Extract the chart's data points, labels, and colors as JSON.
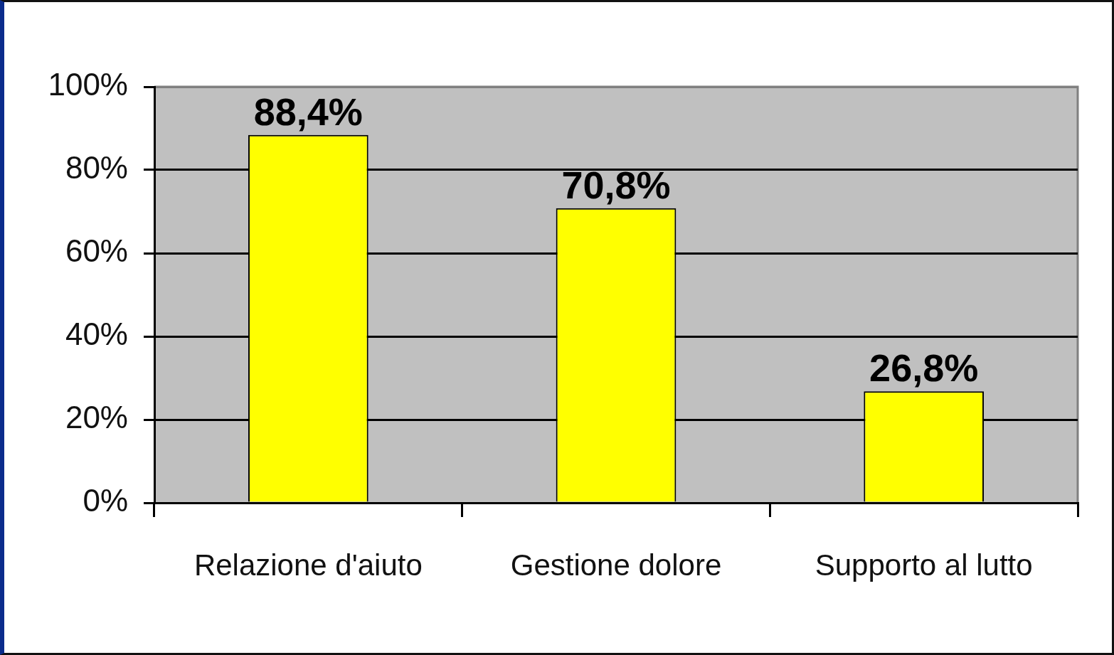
{
  "chart_data": {
    "type": "bar",
    "categories": [
      "Relazione d'aiuto",
      "Gestione dolore",
      "Supporto al lutto"
    ],
    "values": [
      88.4,
      70.8,
      26.8
    ],
    "color": "#ffff00",
    "value_labels": [
      "88,4%",
      "70,8%",
      "26,8%"
    ],
    "ylim": [
      0,
      100
    ],
    "yticks": [
      {
        "value": 0,
        "label": "0%"
      },
      {
        "value": 20,
        "label": "20%"
      },
      {
        "value": 40,
        "label": "40%"
      },
      {
        "value": 60,
        "label": "60%"
      },
      {
        "value": 80,
        "label": "80%"
      },
      {
        "value": 100,
        "label": "100%"
      }
    ],
    "grid": "y"
  }
}
